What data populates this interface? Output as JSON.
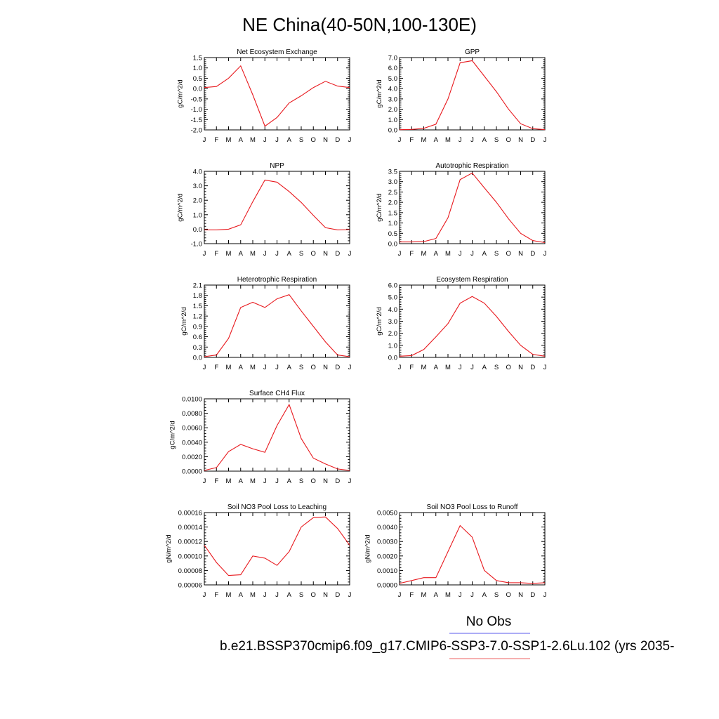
{
  "figure": {
    "title": "NE China(40-50N,100-130E)"
  },
  "legend": {
    "entries": [
      {
        "name": "No Obs",
        "color": "#7b7bf0"
      },
      {
        "name": "b.e21.BSSP370cmip6.f09_g17.CMIP6-SSP3-7.0-SSP1-2.6Lu.102 (yrs 2035-",
        "color": "#f08080"
      }
    ]
  },
  "chart_data": [
    {
      "type": "line",
      "title": "Net Ecosystem Exchange",
      "ylabel": "gC/m^2/d",
      "categories": [
        "J",
        "F",
        "M",
        "A",
        "M",
        "J",
        "J",
        "A",
        "S",
        "O",
        "N",
        "D",
        "J"
      ],
      "ylim": [
        -2.0,
        1.5
      ],
      "yticks": [
        -2.0,
        -1.5,
        -1.0,
        -0.5,
        0.0,
        0.5,
        1.0,
        1.5
      ],
      "ytick_labels": [
        "-2.0",
        "-1.5",
        "-1.0",
        "-0.5",
        "0.0",
        "0.5",
        "1.0",
        "1.5"
      ],
      "series": [
        {
          "color": "#e8191e",
          "values": [
            0.05,
            0.1,
            0.5,
            1.1,
            -0.3,
            -1.82,
            -1.4,
            -0.7,
            -0.35,
            0.05,
            0.35,
            0.12,
            0.05
          ]
        }
      ]
    },
    {
      "type": "line",
      "title": "GPP",
      "ylabel": "gC/m^2/d",
      "categories": [
        "J",
        "F",
        "M",
        "A",
        "M",
        "J",
        "J",
        "A",
        "S",
        "O",
        "N",
        "D",
        "J"
      ],
      "ylim": [
        0.0,
        7.0
      ],
      "yticks": [
        0,
        1,
        2,
        3,
        4,
        5,
        6,
        7
      ],
      "ytick_labels": [
        "0.0",
        "1.0",
        "2.0",
        "3.0",
        "4.0",
        "5.0",
        "6.0",
        "7.0"
      ],
      "series": [
        {
          "color": "#e8191e",
          "values": [
            0.02,
            0.05,
            0.15,
            0.55,
            3.0,
            6.5,
            6.7,
            5.2,
            3.7,
            2.0,
            0.6,
            0.12,
            0.02
          ]
        }
      ]
    },
    {
      "type": "line",
      "title": "NPP",
      "ylabel": "gC/m^2/d",
      "categories": [
        "J",
        "F",
        "M",
        "A",
        "M",
        "J",
        "J",
        "A",
        "S",
        "O",
        "N",
        "D",
        "J"
      ],
      "ylim": [
        -1.0,
        4.0
      ],
      "yticks": [
        -1,
        0,
        1,
        2,
        3,
        4
      ],
      "ytick_labels": [
        "-1.0",
        "0.0",
        "1.0",
        "2.0",
        "3.0",
        "4.0"
      ],
      "series": [
        {
          "color": "#e8191e",
          "values": [
            -0.05,
            -0.05,
            0.0,
            0.3,
            1.9,
            3.4,
            3.25,
            2.6,
            1.85,
            0.95,
            0.1,
            -0.05,
            -0.03
          ]
        }
      ]
    },
    {
      "type": "line",
      "title": "Autotrophic Respiration",
      "ylabel": "gC/m^2/d",
      "categories": [
        "J",
        "F",
        "M",
        "A",
        "M",
        "J",
        "J",
        "A",
        "S",
        "O",
        "N",
        "D",
        "J"
      ],
      "ylim": [
        0.0,
        3.5
      ],
      "yticks": [
        0,
        0.5,
        1.0,
        1.5,
        2.0,
        2.5,
        3.0,
        3.5
      ],
      "ytick_labels": [
        "0.0",
        "0.5",
        "1.0",
        "1.5",
        "2.0",
        "2.5",
        "3.0",
        "3.5"
      ],
      "series": [
        {
          "color": "#e8191e",
          "values": [
            0.08,
            0.08,
            0.1,
            0.25,
            1.25,
            3.1,
            3.42,
            2.7,
            2.0,
            1.2,
            0.5,
            0.15,
            0.05
          ]
        }
      ]
    },
    {
      "type": "line",
      "title": "Heterotrophic Respiration",
      "ylabel": "gC/m^2/d",
      "categories": [
        "J",
        "F",
        "M",
        "A",
        "M",
        "J",
        "J",
        "A",
        "S",
        "O",
        "N",
        "D",
        "J"
      ],
      "ylim": [
        0.0,
        2.1
      ],
      "yticks": [
        0,
        0.3,
        0.6,
        0.9,
        1.2,
        1.5,
        1.8,
        2.1
      ],
      "ytick_labels": [
        "0.0",
        "0.3",
        "0.6",
        "0.9",
        "1.2",
        "1.5",
        "1.8",
        "2.1"
      ],
      "series": [
        {
          "color": "#e8191e",
          "values": [
            0.02,
            0.07,
            0.55,
            1.45,
            1.6,
            1.45,
            1.7,
            1.82,
            1.35,
            0.9,
            0.45,
            0.07,
            0.02
          ]
        }
      ]
    },
    {
      "type": "line",
      "title": "Ecosystem Respiration",
      "ylabel": "gC/m^2/d",
      "categories": [
        "J",
        "F",
        "M",
        "A",
        "M",
        "J",
        "J",
        "A",
        "S",
        "O",
        "N",
        "D",
        "J"
      ],
      "ylim": [
        0.0,
        6.0
      ],
      "yticks": [
        0,
        1,
        2,
        3,
        4,
        5,
        6
      ],
      "ytick_labels": [
        "0.0",
        "1.0",
        "2.0",
        "3.0",
        "4.0",
        "5.0",
        "6.0"
      ],
      "series": [
        {
          "color": "#e8191e",
          "values": [
            0.1,
            0.15,
            0.65,
            1.7,
            2.8,
            4.5,
            5.05,
            4.5,
            3.4,
            2.15,
            1.0,
            0.25,
            0.1
          ]
        }
      ]
    },
    {
      "type": "line",
      "title": "Surface CH4 Flux",
      "ylabel": "gC/m^2/d",
      "categories": [
        "J",
        "F",
        "M",
        "A",
        "M",
        "J",
        "J",
        "A",
        "S",
        "O",
        "N",
        "D",
        "J"
      ],
      "ylim": [
        0.0,
        0.01
      ],
      "yticks": [
        0,
        0.002,
        0.004,
        0.006,
        0.008,
        0.01
      ],
      "ytick_labels": [
        "0.0000",
        "0.0020",
        "0.0040",
        "0.0060",
        "0.0080",
        "0.0100"
      ],
      "series": [
        {
          "color": "#e8191e",
          "values": [
            0.0001,
            0.0005,
            0.0027,
            0.0037,
            0.0031,
            0.0026,
            0.0063,
            0.0092,
            0.0045,
            0.0018,
            0.001,
            0.0003,
            0.0001
          ]
        }
      ]
    },
    {
      "type": "line",
      "title": "Soil NO3 Pool Loss to Leaching",
      "ylabel": "gN/m^2/d",
      "categories": [
        "J",
        "F",
        "M",
        "A",
        "M",
        "J",
        "J",
        "A",
        "S",
        "O",
        "N",
        "D",
        "J"
      ],
      "ylim": [
        6e-05,
        0.00016
      ],
      "yticks": [
        6e-05,
        8e-05,
        0.0001,
        0.00012,
        0.00014,
        0.00016
      ],
      "ytick_labels": [
        "0.00006",
        "0.00008",
        "0.00010",
        "0.00012",
        "0.00014",
        "0.00016"
      ],
      "series": [
        {
          "color": "#e8191e",
          "values": [
            0.000115,
            9.1e-05,
            7.3e-05,
            7.4e-05,
            0.0001,
            9.7e-05,
            8.7e-05,
            0.000106,
            0.00014,
            0.000153,
            0.000154,
            0.000138,
            0.000115
          ]
        }
      ]
    },
    {
      "type": "line",
      "title": "Soil NO3 Pool Loss to Runoff",
      "ylabel": "gN/m^2/d",
      "categories": [
        "J",
        "F",
        "M",
        "A",
        "M",
        "J",
        "J",
        "A",
        "S",
        "O",
        "N",
        "D",
        "J"
      ],
      "ylim": [
        0.0,
        0.005
      ],
      "yticks": [
        0,
        0.001,
        0.002,
        0.003,
        0.004,
        0.005
      ],
      "ytick_labels": [
        "0.0000",
        "0.0010",
        "0.0020",
        "0.0030",
        "0.0040",
        "0.0050"
      ],
      "series": [
        {
          "color": "#e8191e",
          "values": [
            0.0001,
            0.0003,
            0.0005,
            0.0005,
            0.0023,
            0.0041,
            0.0033,
            0.001,
            0.0003,
            0.00015,
            0.00015,
            0.0001,
            0.00015
          ]
        }
      ]
    }
  ]
}
